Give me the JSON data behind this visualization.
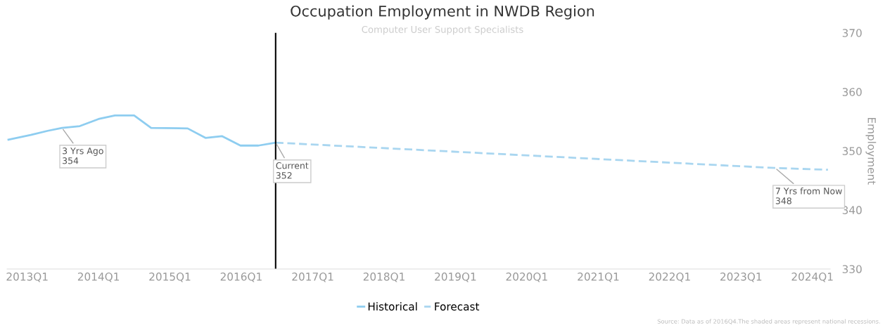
{
  "chart_data": {
    "type": "line",
    "title": "Occupation Employment in NWDB Region",
    "subtitle": "Computer User Support Specialists",
    "ylabel": "Employment",
    "series": [
      {
        "name": "Historical",
        "color": "#8ecdf0",
        "line_style": "solid",
        "x": [
          "2012-09-27",
          "2013-01-19",
          "2013-04-16",
          "2013-06-28",
          "2013-09-27",
          "2014-01-01",
          "2014-03-26",
          "2014-07-02",
          "2014-09-27",
          "2015-04-02",
          "2015-07-02",
          "2015-09-24",
          "2015-12-28",
          "2016-03-29",
          "2016-06-25"
        ],
        "values": [
          351.9,
          352.7,
          353.4,
          353.9,
          354.2,
          355.4,
          356.0,
          356.0,
          353.9,
          353.8,
          352.2,
          352.5,
          350.9,
          350.9,
          351.4
        ]
      },
      {
        "name": "Forecast",
        "color": "#a9d6f0",
        "line_style": "dashed",
        "x": [
          "2016-06-25",
          "2023-06-25",
          "2024-03-21"
        ],
        "values": [
          351.4,
          347.1,
          346.8
        ]
      }
    ],
    "xlim": [
      "2012-09-20",
      "2024-04-01"
    ],
    "xticks": [
      {
        "value": "2013-01-01",
        "label": "2013Q1"
      },
      {
        "value": "2014-01-01",
        "label": "2014Q1"
      },
      {
        "value": "2015-01-01",
        "label": "2015Q1"
      },
      {
        "value": "2016-01-01",
        "label": "2016Q1"
      },
      {
        "value": "2017-01-01",
        "label": "2017Q1"
      },
      {
        "value": "2018-01-01",
        "label": "2018Q1"
      },
      {
        "value": "2019-01-01",
        "label": "2019Q1"
      },
      {
        "value": "2020-01-01",
        "label": "2020Q1"
      },
      {
        "value": "2021-01-01",
        "label": "2021Q1"
      },
      {
        "value": "2022-01-01",
        "label": "2022Q1"
      },
      {
        "value": "2023-01-01",
        "label": "2023Q1"
      },
      {
        "value": "2024-01-01",
        "label": "2024Q1"
      }
    ],
    "ylim": [
      330,
      370
    ],
    "yticks": [
      330,
      340,
      350,
      360,
      370
    ],
    "ref_lines": [
      {
        "axis": "x",
        "value": "2016-06-25",
        "color": "#000000"
      }
    ],
    "annotations": [
      {
        "text": "3 Yrs Ago\n354",
        "x": "2013-06-28",
        "y": 353.9
      },
      {
        "text": "Current\n352",
        "x": "2016-06-25",
        "y": 351.4
      },
      {
        "text": "7 Yrs from Now\n348",
        "x": "2023-06-25",
        "y": 347.1
      },
      "Source: Data as of 2016Q4.The shaded areas represent national recessions."
    ],
    "grid": false,
    "legend": "bottom",
    "marker": "none"
  }
}
